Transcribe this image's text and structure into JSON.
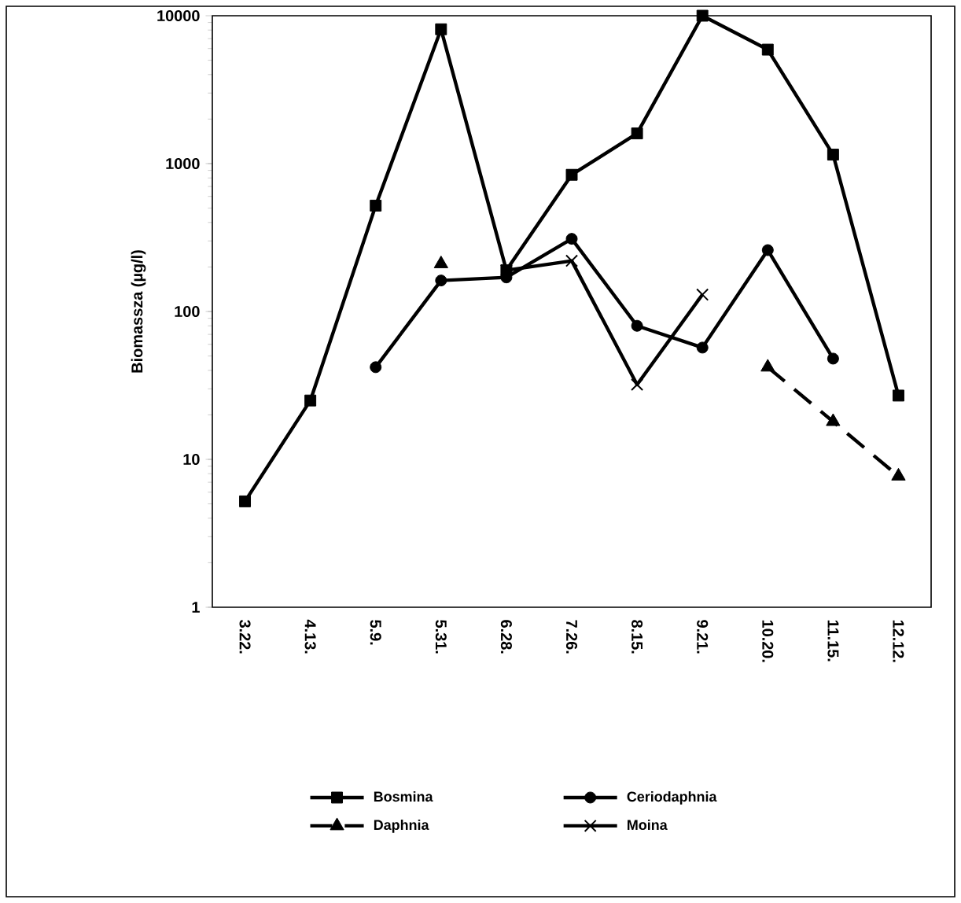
{
  "chart_data": {
    "type": "line",
    "ylabel": "Biomassza (µg/l)",
    "log": "y",
    "ylim": [
      1,
      10000
    ],
    "yticks": [
      1,
      10,
      100,
      1000,
      10000
    ],
    "grid": false,
    "legend": "bottom",
    "categories": [
      "3.22.",
      "4.13.",
      "5.9.",
      "5.31.",
      "6.28.",
      "7.26.",
      "8.15.",
      "9.21.",
      "10.20.",
      "11.15.",
      "12.12."
    ],
    "series": [
      {
        "name": "Bosmina",
        "color": "#000000",
        "marker": "square",
        "line_style": "solid",
        "values": [
          5.2,
          25,
          520,
          8100,
          190,
          840,
          1600,
          10000,
          5900,
          1150,
          27
        ]
      },
      {
        "name": "Ceriodaphnia",
        "color": "#000000",
        "marker": "circle",
        "line_style": "solid",
        "values": [
          null,
          null,
          42,
          162,
          170,
          310,
          80,
          57,
          260,
          48,
          null
        ]
      },
      {
        "name": "Daphnia",
        "color": "#000000",
        "marker": "triangle",
        "line_style": "dashed",
        "values": [
          null,
          null,
          null,
          210,
          null,
          null,
          null,
          null,
          42,
          18,
          7.7
        ]
      },
      {
        "name": "Moina",
        "color": "#000000",
        "marker": "cross",
        "line_style": "solid",
        "values": [
          null,
          null,
          null,
          null,
          190,
          220,
          32,
          130,
          null,
          null,
          null
        ]
      }
    ]
  }
}
